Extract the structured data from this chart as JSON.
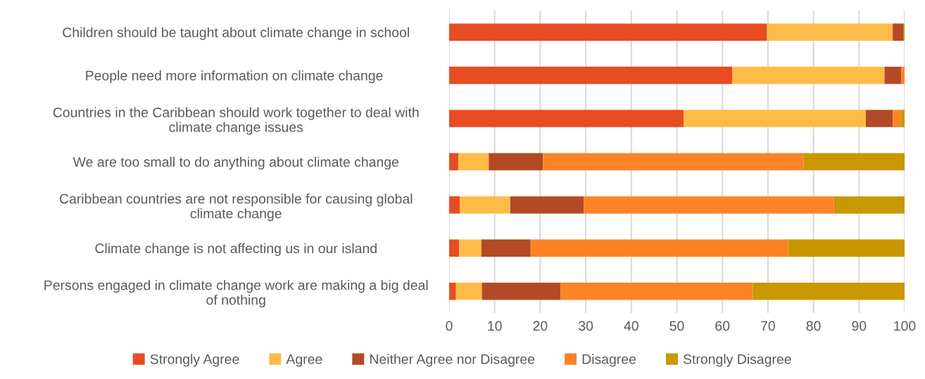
{
  "chart_data": {
    "type": "bar",
    "orientation": "horizontal",
    "stacked": true,
    "categories": [
      "Children should be taught about climate change in school",
      "People need more information on climate change ",
      "Countries in the Caribbean should work together to deal with\nclimate change issues",
      "We are too small to do anything about climate change",
      "Caribbean countries are not responsible for causing global\nclimate change",
      "Climate change is not affecting us in our island",
      "Persons engaged in climate change work are making a big deal\nof nothing"
    ],
    "series": [
      {
        "name": "Strongly Agree",
        "color": "#e84c22",
        "values": [
          69.8,
          62.2,
          51.5,
          2.0,
          2.4,
          2.2,
          1.5
        ]
      },
      {
        "name": "Agree",
        "color": "#ffbb48",
        "values": [
          27.6,
          33.4,
          40.0,
          6.7,
          11.0,
          4.9,
          5.7
        ]
      },
      {
        "name": "Neither Agree nor Disagree",
        "color": "#b44a25",
        "values": [
          2.3,
          3.7,
          5.9,
          11.9,
          16.2,
          10.8,
          17.3
        ]
      },
      {
        "name": "Disagree",
        "color": "#fd8326",
        "values": [
          0,
          0.7,
          1.7,
          57.2,
          54.9,
          56.5,
          42.2
        ]
      },
      {
        "name": "Strongly Disagree",
        "color": "#c99700",
        "values": [
          0.3,
          0,
          0.9,
          22.2,
          15.5,
          25.6,
          33.3
        ]
      }
    ],
    "xlim": [
      0,
      100
    ],
    "xticks": [
      0,
      10,
      20,
      30,
      40,
      50,
      60,
      70,
      80,
      90,
      100
    ],
    "grid": "x",
    "legend": "bottom"
  }
}
